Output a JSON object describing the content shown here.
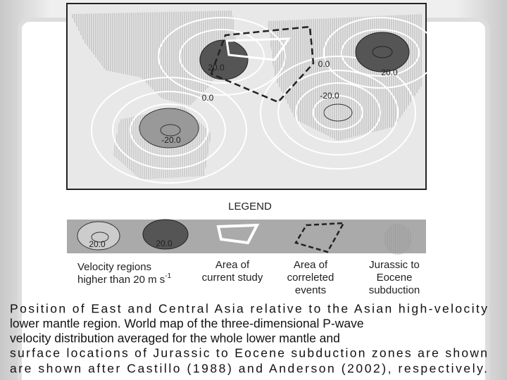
{
  "figure": {
    "contour_labels": [
      "20.0",
      "0.0",
      "20.0",
      "0.0",
      "-20.0",
      "-20.0"
    ],
    "legend": {
      "title": "LEGEND",
      "swatch_labels": [
        "20.0",
        "20.0"
      ],
      "items": [
        {
          "lines": [
            "Velocity regions",
            "higher than 20 m s"
          ],
          "superscript": "-1"
        },
        {
          "lines": [
            "Area of",
            "current study"
          ]
        },
        {
          "lines": [
            "Area of",
            "correleted",
            "events"
          ]
        },
        {
          "lines": [
            "Jurassic to",
            "Eocene",
            "subduction"
          ]
        }
      ]
    }
  },
  "caption": {
    "lines": [
      "Position of East and Central Asia relative to the Asian high-velocity",
      "lower mantle region. World map of the three-dimensional P-wave",
      "velocity distribution averaged for the whole lower mantle and",
      "surface locations of Jurassic to Eocene subduction zones are shown",
      "are shown after Castillo (1988) and Anderson (2002), respectively."
    ]
  }
}
